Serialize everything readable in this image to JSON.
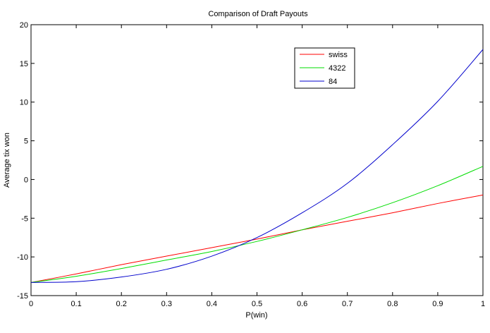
{
  "chart_data": {
    "type": "line",
    "title": "Comparison of Draft Payouts",
    "xlabel": "P(win)",
    "ylabel": "Average tix won",
    "xlim": [
      0,
      1
    ],
    "ylim": [
      -15,
      20
    ],
    "xticks": [
      "0",
      "0.1",
      "0.2",
      "0.3",
      "0.4",
      "0.5",
      "0.6",
      "0.7",
      "0.8",
      "0.9",
      "1"
    ],
    "yticks": [
      "-15",
      "-10",
      "-5",
      "0",
      "5",
      "10",
      "15",
      "20"
    ],
    "grid": false,
    "legend_position": "top-right",
    "x": [
      0,
      0.1,
      0.2,
      0.3,
      0.4,
      0.5,
      0.6,
      0.7,
      0.8,
      0.9,
      1.0
    ],
    "series": [
      {
        "name": "swiss",
        "color": "#ff0000",
        "values": [
          -13.3,
          -12.2,
          -11.0,
          -9.9,
          -8.8,
          -7.7,
          -6.5,
          -5.4,
          -4.3,
          -3.1,
          -2.0
        ]
      },
      {
        "name": "4322",
        "color": "#00dd00",
        "values": [
          -13.3,
          -12.5,
          -11.5,
          -10.4,
          -9.3,
          -8.0,
          -6.5,
          -4.9,
          -3.0,
          -0.8,
          1.7
        ]
      },
      {
        "name": "84",
        "color": "#0000cc",
        "values": [
          -13.3,
          -13.2,
          -12.6,
          -11.6,
          -9.9,
          -7.5,
          -4.3,
          -0.5,
          4.5,
          10.1,
          16.8
        ]
      }
    ]
  }
}
